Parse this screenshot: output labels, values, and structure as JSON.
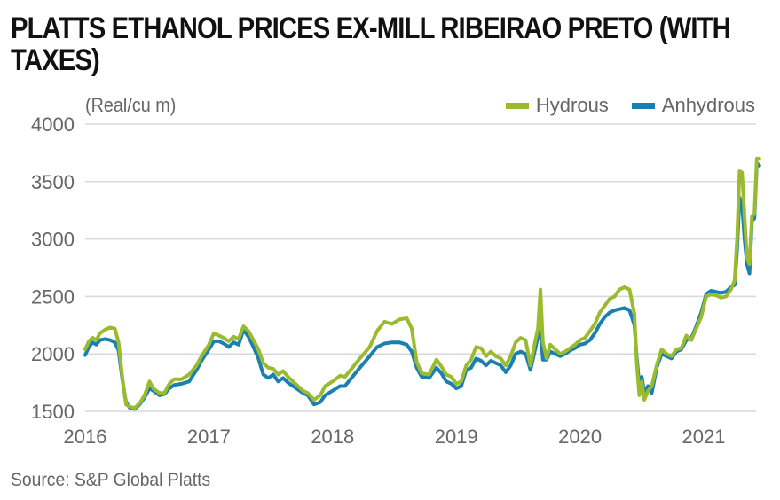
{
  "chart_data": {
    "type": "line",
    "title": "PLATTS ETHANOL PRICES EX-MILL RIBEIRAO PRETO (WITH TAXES)",
    "ylabel": "(Real/cu m)",
    "xlabel": "",
    "source": "Source: S&P Global Platts",
    "ylim": [
      1500,
      4000
    ],
    "xlim": [
      2016.0,
      2021.45
    ],
    "yticks": [
      1500,
      2000,
      2500,
      3000,
      3500,
      4000
    ],
    "xticks": [
      2016,
      2017,
      2018,
      2019,
      2020,
      2021
    ],
    "grid": true,
    "legend_position": "top-right",
    "series": [
      {
        "name": "Hydrous",
        "color": "#9bbb2e",
        "points": [
          [
            2016.0,
            2040
          ],
          [
            2016.03,
            2110
          ],
          [
            2016.06,
            2140
          ],
          [
            2016.09,
            2120
          ],
          [
            2016.12,
            2180
          ],
          [
            2016.16,
            2210
          ],
          [
            2016.2,
            2230
          ],
          [
            2016.24,
            2220
          ],
          [
            2016.27,
            2100
          ],
          [
            2016.3,
            1800
          ],
          [
            2016.33,
            1560
          ],
          [
            2016.36,
            1540
          ],
          [
            2016.4,
            1530
          ],
          [
            2016.44,
            1570
          ],
          [
            2016.48,
            1640
          ],
          [
            2016.52,
            1760
          ],
          [
            2016.55,
            1700
          ],
          [
            2016.6,
            1660
          ],
          [
            2016.64,
            1660
          ],
          [
            2016.68,
            1740
          ],
          [
            2016.72,
            1780
          ],
          [
            2016.78,
            1780
          ],
          [
            2016.84,
            1820
          ],
          [
            2016.9,
            1900
          ],
          [
            2016.94,
            1980
          ],
          [
            2017.0,
            2080
          ],
          [
            2017.04,
            2180
          ],
          [
            2017.08,
            2160
          ],
          [
            2017.12,
            2140
          ],
          [
            2017.16,
            2110
          ],
          [
            2017.2,
            2150
          ],
          [
            2017.24,
            2130
          ],
          [
            2017.28,
            2240
          ],
          [
            2017.32,
            2200
          ],
          [
            2017.36,
            2120
          ],
          [
            2017.4,
            2040
          ],
          [
            2017.44,
            1920
          ],
          [
            2017.48,
            1880
          ],
          [
            2017.52,
            1870
          ],
          [
            2017.56,
            1820
          ],
          [
            2017.6,
            1850
          ],
          [
            2017.64,
            1800
          ],
          [
            2017.68,
            1760
          ],
          [
            2017.72,
            1720
          ],
          [
            2017.76,
            1680
          ],
          [
            2017.8,
            1660
          ],
          [
            2017.85,
            1600
          ],
          [
            2017.9,
            1640
          ],
          [
            2017.94,
            1720
          ],
          [
            2018.0,
            1760
          ],
          [
            2018.06,
            1810
          ],
          [
            2018.1,
            1800
          ],
          [
            2018.16,
            1880
          ],
          [
            2018.22,
            1960
          ],
          [
            2018.3,
            2060
          ],
          [
            2018.36,
            2200
          ],
          [
            2018.42,
            2280
          ],
          [
            2018.48,
            2260
          ],
          [
            2018.54,
            2300
          ],
          [
            2018.6,
            2310
          ],
          [
            2018.64,
            2220
          ],
          [
            2018.68,
            1930
          ],
          [
            2018.72,
            1830
          ],
          [
            2018.78,
            1820
          ],
          [
            2018.84,
            1950
          ],
          [
            2018.88,
            1890
          ],
          [
            2018.92,
            1820
          ],
          [
            2018.96,
            1800
          ],
          [
            2019.0,
            1740
          ],
          [
            2019.04,
            1760
          ],
          [
            2019.08,
            1900
          ],
          [
            2019.12,
            1950
          ],
          [
            2019.16,
            2060
          ],
          [
            2019.2,
            2050
          ],
          [
            2019.24,
            1980
          ],
          [
            2019.28,
            2020
          ],
          [
            2019.32,
            1980
          ],
          [
            2019.36,
            1960
          ],
          [
            2019.4,
            1900
          ],
          [
            2019.44,
            1980
          ],
          [
            2019.48,
            2100
          ],
          [
            2019.52,
            2140
          ],
          [
            2019.56,
            2120
          ],
          [
            2019.6,
            1900
          ],
          [
            2019.64,
            2120
          ],
          [
            2019.66,
            2220
          ],
          [
            2019.68,
            2560
          ],
          [
            2019.7,
            2100
          ],
          [
            2019.73,
            1960
          ],
          [
            2019.76,
            2080
          ],
          [
            2019.8,
            2040
          ],
          [
            2019.84,
            2000
          ],
          [
            2019.88,
            2020
          ],
          [
            2019.92,
            2050
          ],
          [
            2019.96,
            2080
          ],
          [
            2020.0,
            2120
          ],
          [
            2020.04,
            2140
          ],
          [
            2020.08,
            2200
          ],
          [
            2020.12,
            2260
          ],
          [
            2020.16,
            2360
          ],
          [
            2020.2,
            2420
          ],
          [
            2020.24,
            2480
          ],
          [
            2020.28,
            2500
          ],
          [
            2020.32,
            2560
          ],
          [
            2020.36,
            2580
          ],
          [
            2020.4,
            2560
          ],
          [
            2020.44,
            2350
          ],
          [
            2020.46,
            1900
          ],
          [
            2020.48,
            1640
          ],
          [
            2020.5,
            1760
          ],
          [
            2020.52,
            1600
          ],
          [
            2020.55,
            1680
          ],
          [
            2020.58,
            1720
          ],
          [
            2020.62,
            1900
          ],
          [
            2020.66,
            2040
          ],
          [
            2020.7,
            2000
          ],
          [
            2020.74,
            1980
          ],
          [
            2020.78,
            2040
          ],
          [
            2020.82,
            2050
          ],
          [
            2020.86,
            2160
          ],
          [
            2020.9,
            2120
          ],
          [
            2020.94,
            2220
          ],
          [
            2020.98,
            2320
          ],
          [
            2021.02,
            2500
          ],
          [
            2021.06,
            2520
          ],
          [
            2021.1,
            2510
          ],
          [
            2021.14,
            2490
          ],
          [
            2021.18,
            2500
          ],
          [
            2021.22,
            2560
          ],
          [
            2021.25,
            2640
          ],
          [
            2021.27,
            3000
          ],
          [
            2021.29,
            3590
          ],
          [
            2021.31,
            3580
          ],
          [
            2021.33,
            3200
          ],
          [
            2021.35,
            2840
          ],
          [
            2021.37,
            2780
          ],
          [
            2021.39,
            3200
          ],
          [
            2021.41,
            3220
          ],
          [
            2021.43,
            3700
          ],
          [
            2021.45,
            3700
          ]
        ]
      },
      {
        "name": "Anhydrous",
        "color": "#1b7fb0",
        "points": [
          [
            2016.0,
            1990
          ],
          [
            2016.03,
            2060
          ],
          [
            2016.06,
            2100
          ],
          [
            2016.09,
            2080
          ],
          [
            2016.12,
            2120
          ],
          [
            2016.16,
            2130
          ],
          [
            2016.2,
            2120
          ],
          [
            2016.24,
            2100
          ],
          [
            2016.27,
            2030
          ],
          [
            2016.3,
            1780
          ],
          [
            2016.33,
            1580
          ],
          [
            2016.36,
            1530
          ],
          [
            2016.4,
            1520
          ],
          [
            2016.44,
            1560
          ],
          [
            2016.48,
            1620
          ],
          [
            2016.52,
            1700
          ],
          [
            2016.55,
            1680
          ],
          [
            2016.6,
            1640
          ],
          [
            2016.64,
            1650
          ],
          [
            2016.68,
            1700
          ],
          [
            2016.72,
            1730
          ],
          [
            2016.78,
            1740
          ],
          [
            2016.84,
            1760
          ],
          [
            2016.9,
            1860
          ],
          [
            2016.94,
            1940
          ],
          [
            2017.0,
            2040
          ],
          [
            2017.04,
            2110
          ],
          [
            2017.08,
            2110
          ],
          [
            2017.12,
            2090
          ],
          [
            2017.16,
            2060
          ],
          [
            2017.2,
            2100
          ],
          [
            2017.24,
            2080
          ],
          [
            2017.28,
            2210
          ],
          [
            2017.32,
            2150
          ],
          [
            2017.36,
            2060
          ],
          [
            2017.4,
            1960
          ],
          [
            2017.44,
            1820
          ],
          [
            2017.48,
            1790
          ],
          [
            2017.52,
            1820
          ],
          [
            2017.56,
            1760
          ],
          [
            2017.6,
            1790
          ],
          [
            2017.64,
            1750
          ],
          [
            2017.68,
            1720
          ],
          [
            2017.72,
            1690
          ],
          [
            2017.76,
            1660
          ],
          [
            2017.8,
            1640
          ],
          [
            2017.85,
            1560
          ],
          [
            2017.9,
            1580
          ],
          [
            2017.94,
            1640
          ],
          [
            2018.0,
            1680
          ],
          [
            2018.06,
            1720
          ],
          [
            2018.1,
            1720
          ],
          [
            2018.16,
            1800
          ],
          [
            2018.22,
            1880
          ],
          [
            2018.3,
            1980
          ],
          [
            2018.36,
            2060
          ],
          [
            2018.42,
            2090
          ],
          [
            2018.48,
            2100
          ],
          [
            2018.54,
            2100
          ],
          [
            2018.6,
            2080
          ],
          [
            2018.64,
            2020
          ],
          [
            2018.68,
            1880
          ],
          [
            2018.72,
            1800
          ],
          [
            2018.78,
            1790
          ],
          [
            2018.84,
            1880
          ],
          [
            2018.88,
            1830
          ],
          [
            2018.92,
            1760
          ],
          [
            2018.96,
            1740
          ],
          [
            2019.0,
            1700
          ],
          [
            2019.04,
            1720
          ],
          [
            2019.08,
            1860
          ],
          [
            2019.12,
            1880
          ],
          [
            2019.16,
            1960
          ],
          [
            2019.2,
            1940
          ],
          [
            2019.24,
            1900
          ],
          [
            2019.28,
            1940
          ],
          [
            2019.32,
            1920
          ],
          [
            2019.36,
            1900
          ],
          [
            2019.4,
            1840
          ],
          [
            2019.44,
            1900
          ],
          [
            2019.48,
            2000
          ],
          [
            2019.52,
            2020
          ],
          [
            2019.56,
            2000
          ],
          [
            2019.6,
            1860
          ],
          [
            2019.64,
            2050
          ],
          [
            2019.66,
            2150
          ],
          [
            2019.68,
            2200
          ],
          [
            2019.7,
            1950
          ],
          [
            2019.73,
            1950
          ],
          [
            2019.76,
            2020
          ],
          [
            2019.8,
            2000
          ],
          [
            2019.84,
            1980
          ],
          [
            2019.88,
            2000
          ],
          [
            2019.92,
            2030
          ],
          [
            2019.96,
            2050
          ],
          [
            2020.0,
            2080
          ],
          [
            2020.04,
            2090
          ],
          [
            2020.08,
            2120
          ],
          [
            2020.12,
            2180
          ],
          [
            2020.16,
            2260
          ],
          [
            2020.2,
            2320
          ],
          [
            2020.24,
            2360
          ],
          [
            2020.28,
            2380
          ],
          [
            2020.32,
            2390
          ],
          [
            2020.36,
            2400
          ],
          [
            2020.4,
            2380
          ],
          [
            2020.44,
            2250
          ],
          [
            2020.46,
            1960
          ],
          [
            2020.48,
            1720
          ],
          [
            2020.5,
            1800
          ],
          [
            2020.52,
            1660
          ],
          [
            2020.55,
            1720
          ],
          [
            2020.58,
            1660
          ],
          [
            2020.62,
            1880
          ],
          [
            2020.66,
            2000
          ],
          [
            2020.7,
            1980
          ],
          [
            2020.74,
            1960
          ],
          [
            2020.78,
            2020
          ],
          [
            2020.82,
            2040
          ],
          [
            2020.86,
            2120
          ],
          [
            2020.9,
            2140
          ],
          [
            2020.94,
            2240
          ],
          [
            2020.98,
            2360
          ],
          [
            2021.02,
            2520
          ],
          [
            2021.06,
            2550
          ],
          [
            2021.1,
            2540
          ],
          [
            2021.14,
            2530
          ],
          [
            2021.18,
            2540
          ],
          [
            2021.22,
            2580
          ],
          [
            2021.25,
            2600
          ],
          [
            2021.27,
            2900
          ],
          [
            2021.29,
            3360
          ],
          [
            2021.31,
            3300
          ],
          [
            2021.33,
            3000
          ],
          [
            2021.35,
            2780
          ],
          [
            2021.37,
            2700
          ],
          [
            2021.39,
            3160
          ],
          [
            2021.41,
            3180
          ],
          [
            2021.43,
            3660
          ],
          [
            2021.45,
            3640
          ]
        ]
      }
    ]
  }
}
